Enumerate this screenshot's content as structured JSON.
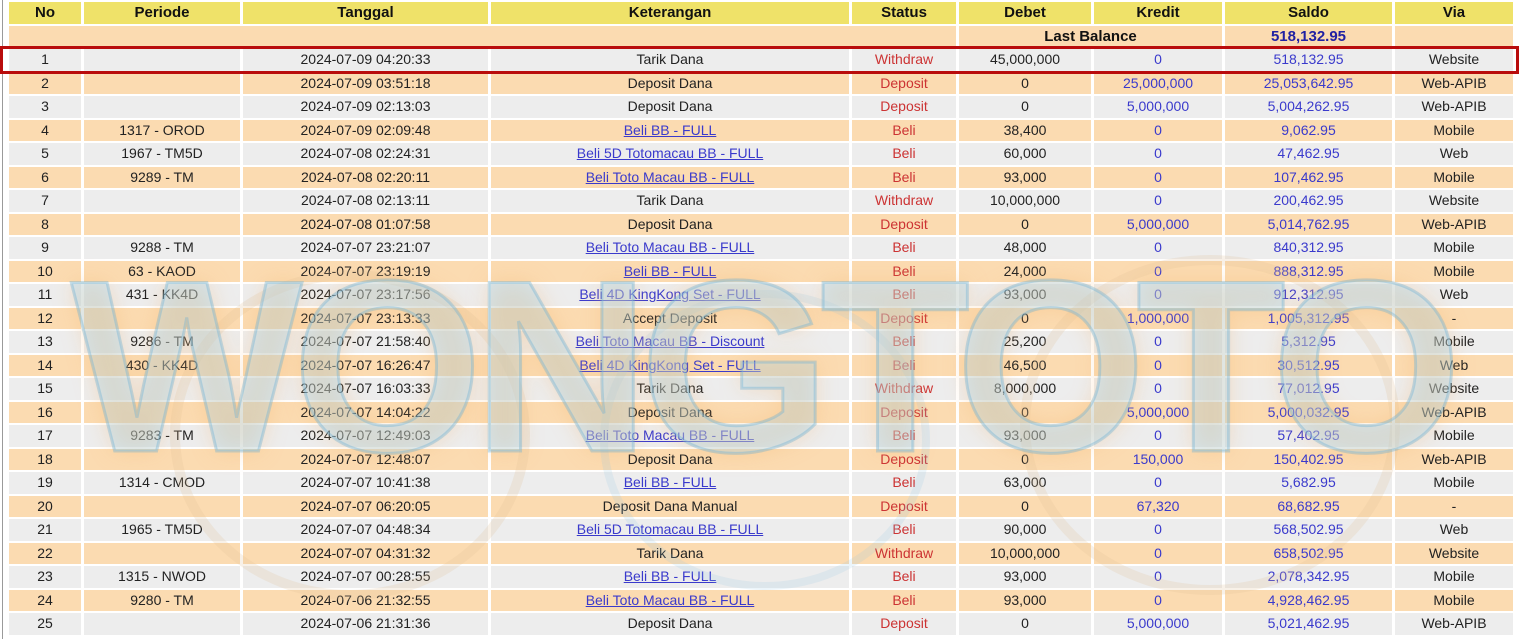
{
  "watermark": {
    "text": "WONGTOTO"
  },
  "colors": {
    "header_bg": "#EFE269",
    "row_bg": "#EDEDED",
    "row_alt_bg": "#FBDBB1",
    "status_red": "#CC3333",
    "amount_blue": "#3A3ACC",
    "balance_navy": "#2121A3",
    "highlight_red": "#B90C0C"
  },
  "table": {
    "columns": [
      "No",
      "Periode",
      "Tanggal",
      "Keterangan",
      "Status",
      "Debet",
      "Kredit",
      "Saldo",
      "Via"
    ],
    "last_balance": {
      "label": "Last Balance",
      "value": "518,132.95"
    },
    "rows": [
      {
        "no": "1",
        "periode": "",
        "tanggal": "2024-07-09 04:20:33",
        "keterangan": "Tarik Dana",
        "keterangan_link": false,
        "status": "Withdraw",
        "debet": "45,000,000",
        "kredit": "0",
        "saldo": "518,132.95",
        "via": "Website",
        "highlighted": true
      },
      {
        "no": "2",
        "periode": "",
        "tanggal": "2024-07-09 03:51:18",
        "keterangan": "Deposit Dana",
        "keterangan_link": false,
        "status": "Deposit",
        "debet": "0",
        "kredit": "25,000,000",
        "saldo": "25,053,642.95",
        "via": "Web-APIB",
        "highlighted": false
      },
      {
        "no": "3",
        "periode": "",
        "tanggal": "2024-07-09 02:13:03",
        "keterangan": "Deposit Dana",
        "keterangan_link": false,
        "status": "Deposit",
        "debet": "0",
        "kredit": "5,000,000",
        "saldo": "5,004,262.95",
        "via": "Web-APIB",
        "highlighted": false
      },
      {
        "no": "4",
        "periode": "1317 - OROD",
        "tanggal": "2024-07-09 02:09:48",
        "keterangan": "Beli BB - FULL",
        "keterangan_link": true,
        "status": "Beli",
        "debet": "38,400",
        "kredit": "0",
        "saldo": "9,062.95",
        "via": "Mobile",
        "highlighted": false
      },
      {
        "no": "5",
        "periode": "1967 - TM5D",
        "tanggal": "2024-07-08 02:24:31",
        "keterangan": "Beli 5D Totomacau BB - FULL",
        "keterangan_link": true,
        "status": "Beli",
        "debet": "60,000",
        "kredit": "0",
        "saldo": "47,462.95",
        "via": "Web",
        "highlighted": false
      },
      {
        "no": "6",
        "periode": "9289 - TM",
        "tanggal": "2024-07-08 02:20:11",
        "keterangan": "Beli Toto Macau BB - FULL",
        "keterangan_link": true,
        "status": "Beli",
        "debet": "93,000",
        "kredit": "0",
        "saldo": "107,462.95",
        "via": "Mobile",
        "highlighted": false
      },
      {
        "no": "7",
        "periode": "",
        "tanggal": "2024-07-08 02:13:11",
        "keterangan": "Tarik Dana",
        "keterangan_link": false,
        "status": "Withdraw",
        "debet": "10,000,000",
        "kredit": "0",
        "saldo": "200,462.95",
        "via": "Website",
        "highlighted": false
      },
      {
        "no": "8",
        "periode": "",
        "tanggal": "2024-07-08 01:07:58",
        "keterangan": "Deposit Dana",
        "keterangan_link": false,
        "status": "Deposit",
        "debet": "0",
        "kredit": "5,000,000",
        "saldo": "5,014,762.95",
        "via": "Web-APIB",
        "highlighted": false
      },
      {
        "no": "9",
        "periode": "9288 - TM",
        "tanggal": "2024-07-07 23:21:07",
        "keterangan": "Beli Toto Macau BB - FULL",
        "keterangan_link": true,
        "status": "Beli",
        "debet": "48,000",
        "kredit": "0",
        "saldo": "840,312.95",
        "via": "Mobile",
        "highlighted": false
      },
      {
        "no": "10",
        "periode": "63 - KAOD",
        "tanggal": "2024-07-07 23:19:19",
        "keterangan": "Beli BB - FULL",
        "keterangan_link": true,
        "status": "Beli",
        "debet": "24,000",
        "kredit": "0",
        "saldo": "888,312.95",
        "via": "Mobile",
        "highlighted": false
      },
      {
        "no": "11",
        "periode": "431 - KK4D",
        "tanggal": "2024-07-07 23:17:56",
        "keterangan": "Beli 4D KingKong Set - FULL",
        "keterangan_link": true,
        "status": "Beli",
        "debet": "93,000",
        "kredit": "0",
        "saldo": "912,312.95",
        "via": "Web",
        "highlighted": false
      },
      {
        "no": "12",
        "periode": "",
        "tanggal": "2024-07-07 23:13:33",
        "keterangan": "Accept Deposit",
        "keterangan_link": false,
        "status": "Deposit",
        "debet": "0",
        "kredit": "1,000,000",
        "saldo": "1,005,312.95",
        "via": "-",
        "highlighted": false
      },
      {
        "no": "13",
        "periode": "9286 - TM",
        "tanggal": "2024-07-07 21:58:40",
        "keterangan": "Beli Toto Macau BB - Discount",
        "keterangan_link": true,
        "status": "Beli",
        "debet": "25,200",
        "kredit": "0",
        "saldo": "5,312.95",
        "via": "Mobile",
        "highlighted": false
      },
      {
        "no": "14",
        "periode": "430 - KK4D",
        "tanggal": "2024-07-07 16:26:47",
        "keterangan": "Beli 4D KingKong Set - FULL",
        "keterangan_link": true,
        "status": "Beli",
        "debet": "46,500",
        "kredit": "0",
        "saldo": "30,512.95",
        "via": "Web",
        "highlighted": false
      },
      {
        "no": "15",
        "periode": "",
        "tanggal": "2024-07-07 16:03:33",
        "keterangan": "Tarik Dana",
        "keterangan_link": false,
        "status": "Withdraw",
        "debet": "8,000,000",
        "kredit": "0",
        "saldo": "77,012.95",
        "via": "Website",
        "highlighted": false
      },
      {
        "no": "16",
        "periode": "",
        "tanggal": "2024-07-07 14:04:22",
        "keterangan": "Deposit Dana",
        "keterangan_link": false,
        "status": "Deposit",
        "debet": "0",
        "kredit": "5,000,000",
        "saldo": "5,000,032.95",
        "via": "Web-APIB",
        "highlighted": false
      },
      {
        "no": "17",
        "periode": "9283 - TM",
        "tanggal": "2024-07-07 12:49:03",
        "keterangan": "Beli Toto Macau BB - FULL",
        "keterangan_link": true,
        "status": "Beli",
        "debet": "93,000",
        "kredit": "0",
        "saldo": "57,402.95",
        "via": "Mobile",
        "highlighted": false
      },
      {
        "no": "18",
        "periode": "",
        "tanggal": "2024-07-07 12:48:07",
        "keterangan": "Deposit Dana",
        "keterangan_link": false,
        "status": "Deposit",
        "debet": "0",
        "kredit": "150,000",
        "saldo": "150,402.95",
        "via": "Web-APIB",
        "highlighted": false
      },
      {
        "no": "19",
        "periode": "1314 - CMOD",
        "tanggal": "2024-07-07 10:41:38",
        "keterangan": "Beli BB - FULL",
        "keterangan_link": true,
        "status": "Beli",
        "debet": "63,000",
        "kredit": "0",
        "saldo": "5,682.95",
        "via": "Mobile",
        "highlighted": false
      },
      {
        "no": "20",
        "periode": "",
        "tanggal": "2024-07-07 06:20:05",
        "keterangan": "Deposit Dana Manual",
        "keterangan_link": false,
        "status": "Deposit",
        "debet": "0",
        "kredit": "67,320",
        "saldo": "68,682.95",
        "via": "-",
        "highlighted": false
      },
      {
        "no": "21",
        "periode": "1965 - TM5D",
        "tanggal": "2024-07-07 04:48:34",
        "keterangan": "Beli 5D Totomacau BB - FULL",
        "keterangan_link": true,
        "status": "Beli",
        "debet": "90,000",
        "kredit": "0",
        "saldo": "568,502.95",
        "via": "Web",
        "highlighted": false
      },
      {
        "no": "22",
        "periode": "",
        "tanggal": "2024-07-07 04:31:32",
        "keterangan": "Tarik Dana",
        "keterangan_link": false,
        "status": "Withdraw",
        "debet": "10,000,000",
        "kredit": "0",
        "saldo": "658,502.95",
        "via": "Website",
        "highlighted": false
      },
      {
        "no": "23",
        "periode": "1315 - NWOD",
        "tanggal": "2024-07-07 00:28:55",
        "keterangan": "Beli BB - FULL",
        "keterangan_link": true,
        "status": "Beli",
        "debet": "93,000",
        "kredit": "0",
        "saldo": "2,078,342.95",
        "via": "Mobile",
        "highlighted": false
      },
      {
        "no": "24",
        "periode": "9280 - TM",
        "tanggal": "2024-07-06 21:32:55",
        "keterangan": "Beli Toto Macau BB - FULL",
        "keterangan_link": true,
        "status": "Beli",
        "debet": "93,000",
        "kredit": "0",
        "saldo": "4,928,462.95",
        "via": "Mobile",
        "highlighted": false
      },
      {
        "no": "25",
        "periode": "",
        "tanggal": "2024-07-06 21:31:36",
        "keterangan": "Deposit Dana",
        "keterangan_link": false,
        "status": "Deposit",
        "debet": "0",
        "kredit": "5,000,000",
        "saldo": "5,021,462.95",
        "via": "Web-APIB",
        "highlighted": false
      }
    ]
  }
}
